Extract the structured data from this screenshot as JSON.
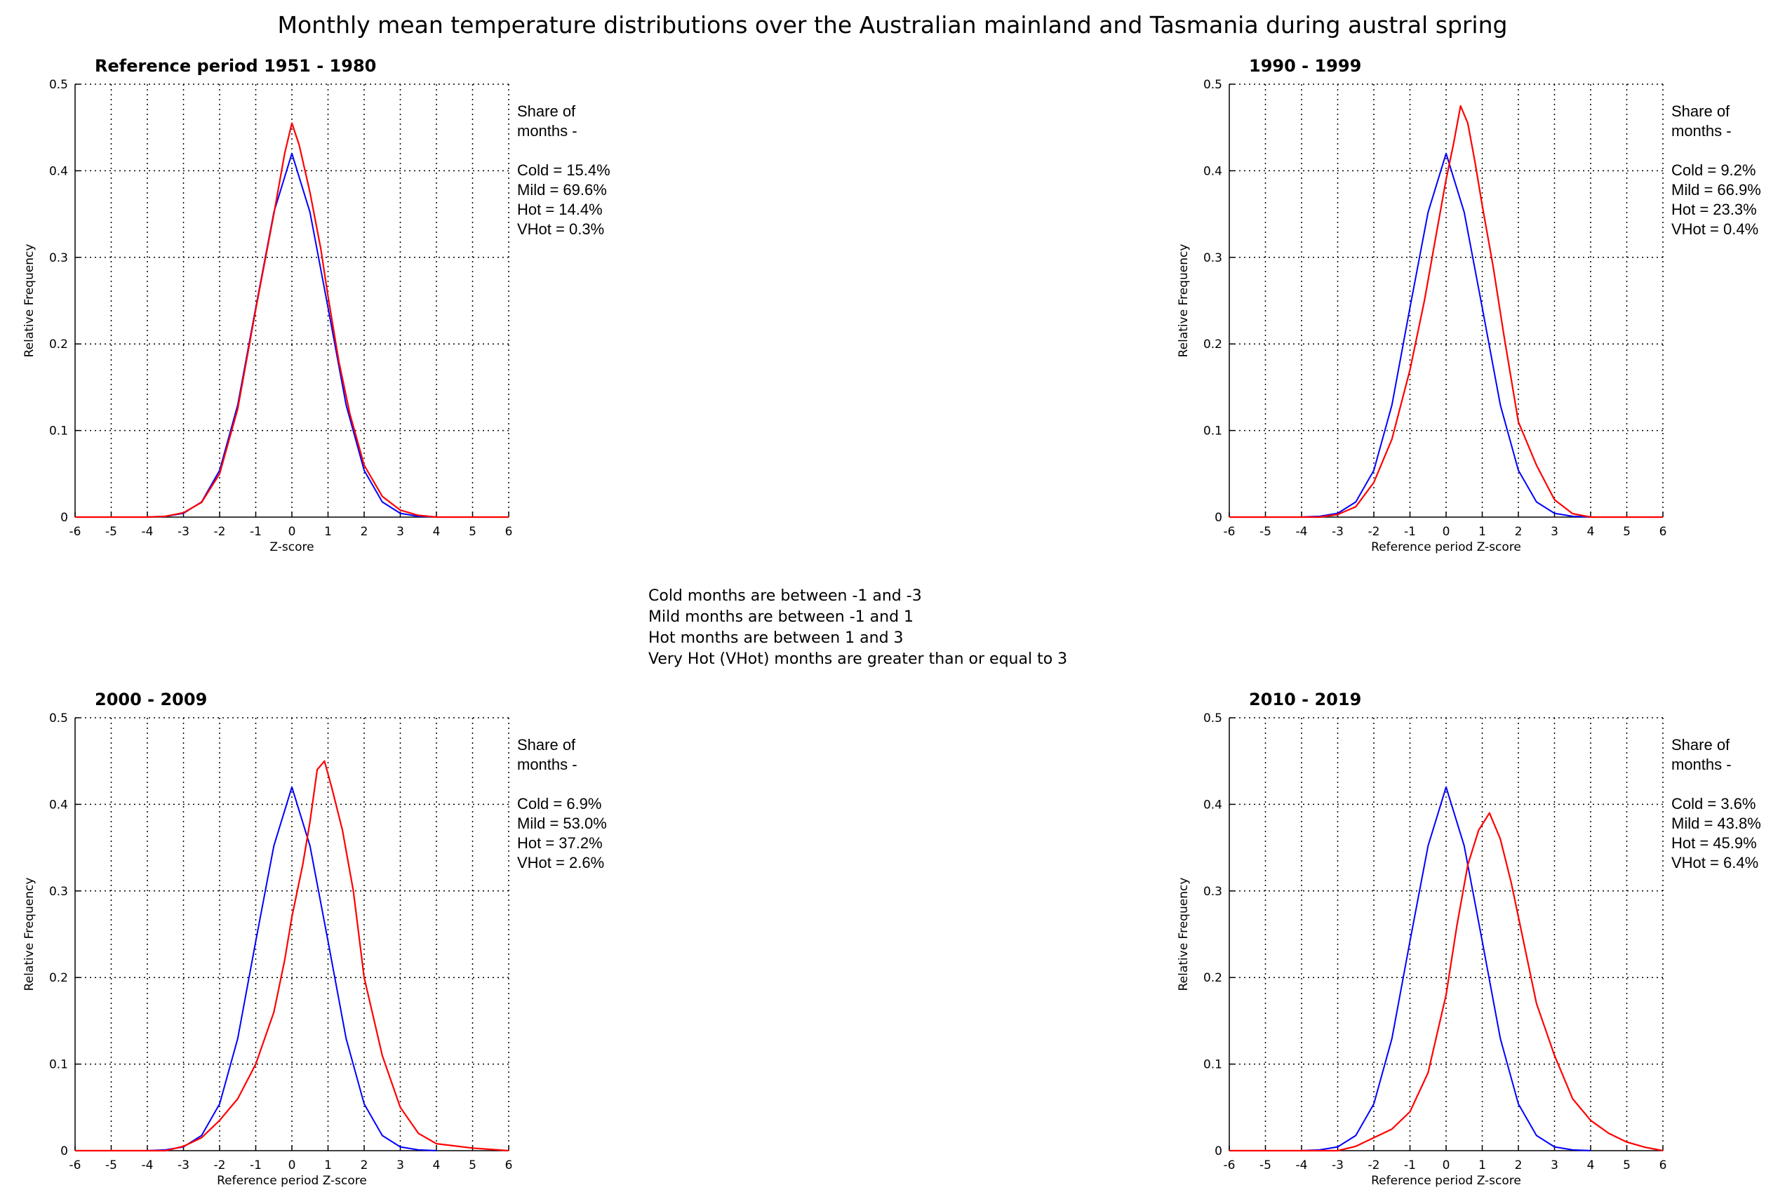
{
  "title": "Monthly mean temperature distributions over the Australian mainland and Tasmania during austral spring",
  "definitions": [
    "Cold months are between -1 and -3",
    "Mild months are between -1 and 1",
    "Hot months are between 1 and 3",
    "Very Hot (VHot) months are greater than or equal to 3"
  ],
  "colors": {
    "reference": "#0000ff",
    "observed": "#ff0000",
    "grid": "#000000"
  },
  "chart_data": [
    {
      "type": "line",
      "title": "Reference period 1951 - 1980",
      "xlabel": "Z-score",
      "ylabel": "Relative Frequency",
      "xlim": [
        -6,
        6
      ],
      "ylim": [
        0,
        0.5
      ],
      "xticks": [
        -6,
        -5,
        -4,
        -3,
        -2,
        -1,
        0,
        1,
        2,
        3,
        4,
        5,
        6
      ],
      "yticks": [
        0,
        0.1,
        0.2,
        0.3,
        0.4,
        0.5
      ],
      "grid": true,
      "series": [
        {
          "color": "#0000ff",
          "x": [
            -4,
            -3.5,
            -3,
            -2.5,
            -2,
            -1.5,
            -1,
            -0.5,
            0,
            0.5,
            1,
            1.5,
            2,
            2.5,
            3,
            3.5,
            4
          ],
          "y": [
            0.0001,
            0.0009,
            0.0044,
            0.0175,
            0.054,
            0.1295,
            0.242,
            0.352,
            0.42,
            0.352,
            0.242,
            0.1295,
            0.054,
            0.0175,
            0.0044,
            0.0009,
            0.0001
          ]
        },
        {
          "color": "#ff0000",
          "x": [
            -6,
            -4,
            -3.5,
            -3,
            -2.5,
            -2,
            -1.5,
            -1,
            -0.5,
            -0.2,
            0,
            0.2,
            0.5,
            0.8,
            1,
            1.3,
            1.6,
            2,
            2.5,
            3,
            3.5,
            4,
            6
          ],
          "y": [
            0,
            0,
            0.001,
            0.005,
            0.017,
            0.05,
            0.125,
            0.24,
            0.35,
            0.42,
            0.455,
            0.43,
            0.375,
            0.31,
            0.255,
            0.18,
            0.12,
            0.06,
            0.024,
            0.008,
            0.002,
            0,
            0
          ]
        }
      ],
      "share": {
        "heading": [
          "Share of",
          "months -"
        ],
        "lines": [
          "Cold = 15.4%",
          "Mild = 69.6%",
          "Hot = 14.4%",
          "VHot = 0.3%"
        ]
      }
    },
    {
      "type": "line",
      "title": "1990 - 1999",
      "xlabel": "Reference period Z-score",
      "ylabel": "Relative Frequency",
      "xlim": [
        -6,
        6
      ],
      "ylim": [
        0,
        0.5
      ],
      "xticks": [
        -6,
        -5,
        -4,
        -3,
        -2,
        -1,
        0,
        1,
        2,
        3,
        4,
        5,
        6
      ],
      "yticks": [
        0,
        0.1,
        0.2,
        0.3,
        0.4,
        0.5
      ],
      "grid": true,
      "series": [
        {
          "color": "#0000ff",
          "x": [
            -4,
            -3.5,
            -3,
            -2.5,
            -2,
            -1.5,
            -1,
            -0.5,
            0,
            0.5,
            1,
            1.5,
            2,
            2.5,
            3,
            3.5,
            4
          ],
          "y": [
            0.0001,
            0.0009,
            0.0044,
            0.0175,
            0.054,
            0.1295,
            0.242,
            0.352,
            0.42,
            0.352,
            0.242,
            0.1295,
            0.054,
            0.0175,
            0.0044,
            0.0009,
            0.0001
          ]
        },
        {
          "color": "#ff0000",
          "x": [
            -6,
            -3.5,
            -3,
            -2.5,
            -2,
            -1.5,
            -1,
            -0.6,
            -0.3,
            0,
            0.2,
            0.4,
            0.6,
            0.8,
            1,
            1.3,
            1.6,
            2,
            2.5,
            3,
            3.5,
            4,
            6
          ],
          "y": [
            0,
            0,
            0.003,
            0.012,
            0.04,
            0.09,
            0.17,
            0.25,
            0.32,
            0.39,
            0.43,
            0.475,
            0.455,
            0.41,
            0.36,
            0.29,
            0.21,
            0.11,
            0.06,
            0.02,
            0.004,
            0,
            0
          ]
        }
      ],
      "share": {
        "heading": [
          "Share of",
          "months -"
        ],
        "lines": [
          "Cold = 9.2%",
          "Mild = 66.9%",
          "Hot = 23.3%",
          "VHot = 0.4%"
        ]
      }
    },
    {
      "type": "line",
      "title": "2000 - 2009",
      "xlabel": "Reference period Z-score",
      "ylabel": "Relative Frequency",
      "xlim": [
        -6,
        6
      ],
      "ylim": [
        0,
        0.5
      ],
      "xticks": [
        -6,
        -5,
        -4,
        -3,
        -2,
        -1,
        0,
        1,
        2,
        3,
        4,
        5,
        6
      ],
      "yticks": [
        0,
        0.1,
        0.2,
        0.3,
        0.4,
        0.5
      ],
      "grid": true,
      "series": [
        {
          "color": "#0000ff",
          "x": [
            -4,
            -3.5,
            -3,
            -2.5,
            -2,
            -1.5,
            -1,
            -0.5,
            0,
            0.5,
            1,
            1.5,
            2,
            2.5,
            3,
            3.5,
            4
          ],
          "y": [
            0.0001,
            0.0009,
            0.0044,
            0.0175,
            0.054,
            0.1295,
            0.242,
            0.352,
            0.42,
            0.352,
            0.242,
            0.1295,
            0.054,
            0.0175,
            0.0044,
            0.0009,
            0.0001
          ]
        },
        {
          "color": "#ff0000",
          "x": [
            -6,
            -3.5,
            -3,
            -2.5,
            -2,
            -1.5,
            -1,
            -0.5,
            -0.2,
            0,
            0.3,
            0.5,
            0.7,
            0.9,
            1.1,
            1.4,
            1.7,
            2,
            2.5,
            3,
            3.5,
            4,
            5,
            6
          ],
          "y": [
            0,
            0,
            0.005,
            0.015,
            0.035,
            0.06,
            0.1,
            0.16,
            0.22,
            0.27,
            0.33,
            0.38,
            0.44,
            0.45,
            0.42,
            0.37,
            0.3,
            0.2,
            0.11,
            0.05,
            0.02,
            0.008,
            0.003,
            0
          ]
        }
      ],
      "share": {
        "heading": [
          "Share of",
          "months -"
        ],
        "lines": [
          "Cold = 6.9%",
          "Mild = 53.0%",
          "Hot = 37.2%",
          "VHot = 2.6%"
        ]
      }
    },
    {
      "type": "line",
      "title": "2010 - 2019",
      "xlabel": "Reference period Z-score",
      "ylabel": "Relative Frequency",
      "xlim": [
        -6,
        6
      ],
      "ylim": [
        0,
        0.5
      ],
      "xticks": [
        -6,
        -5,
        -4,
        -3,
        -2,
        -1,
        0,
        1,
        2,
        3,
        4,
        5,
        6
      ],
      "yticks": [
        0,
        0.1,
        0.2,
        0.3,
        0.4,
        0.5
      ],
      "grid": true,
      "series": [
        {
          "color": "#0000ff",
          "x": [
            -4,
            -3.5,
            -3,
            -2.5,
            -2,
            -1.5,
            -1,
            -0.5,
            0,
            0.5,
            1,
            1.5,
            2,
            2.5,
            3,
            3.5,
            4
          ],
          "y": [
            0.0001,
            0.0009,
            0.0044,
            0.0175,
            0.054,
            0.1295,
            0.242,
            0.352,
            0.42,
            0.352,
            0.242,
            0.1295,
            0.054,
            0.0175,
            0.0044,
            0.0009,
            0.0001
          ]
        },
        {
          "color": "#ff0000",
          "x": [
            -6,
            -3,
            -2.5,
            -2,
            -1.5,
            -1,
            -0.5,
            0,
            0.3,
            0.6,
            0.9,
            1.2,
            1.5,
            1.8,
            2.1,
            2.5,
            3,
            3.5,
            4,
            4.5,
            5,
            5.5,
            6
          ],
          "y": [
            0,
            0,
            0.005,
            0.015,
            0.025,
            0.045,
            0.09,
            0.18,
            0.26,
            0.33,
            0.37,
            0.39,
            0.36,
            0.31,
            0.25,
            0.17,
            0.11,
            0.06,
            0.035,
            0.02,
            0.01,
            0.004,
            0
          ]
        }
      ],
      "share": {
        "heading": [
          "Share of",
          "months -"
        ],
        "lines": [
          "Cold = 3.6%",
          "Mild = 43.8%",
          "Hot = 45.9%",
          "VHot = 6.4%"
        ]
      }
    }
  ]
}
